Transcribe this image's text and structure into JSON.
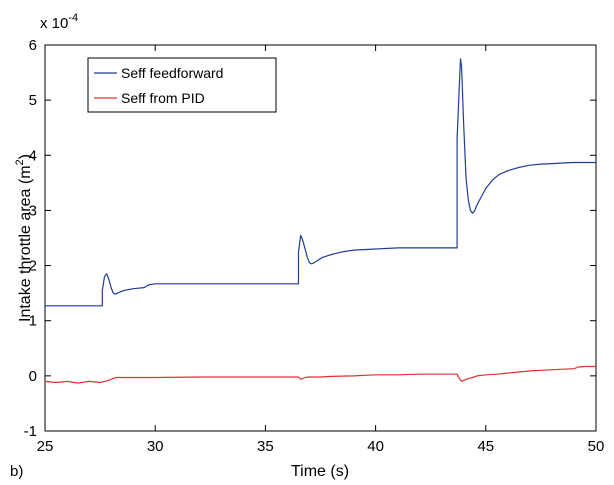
{
  "panel_label": "b)",
  "chart_data": {
    "type": "line",
    "xlabel": "Time (s)",
    "ylabel": "Intake throttle area (m²)",
    "ylabel_main": "Intake throttle area (m",
    "ylabel_exp": "2",
    "ylabel_close": ")",
    "y_scale_prefix": "x 10",
    "y_scale_exp": "-4",
    "xlim": [
      25,
      50
    ],
    "ylim": [
      -1,
      6
    ],
    "xticks": [
      25,
      30,
      35,
      40,
      45,
      50
    ],
    "yticks": [
      -1,
      0,
      1,
      2,
      3,
      4,
      5,
      6
    ],
    "grid": false,
    "legend_position": "top-left",
    "series": [
      {
        "name": "Seff feedforward",
        "color": "#1f3c99",
        "x": [
          25,
          27.6,
          27.6,
          27.7,
          27.8,
          27.9,
          28.0,
          28.1,
          28.2,
          28.4,
          28.6,
          29.0,
          29.5,
          29.7,
          30.0,
          31,
          32,
          33,
          34,
          35,
          36,
          36.5,
          36.5,
          36.6,
          36.7,
          36.8,
          36.9,
          37.0,
          37.1,
          37.2,
          37.4,
          37.6,
          38.0,
          38.5,
          39.0,
          40,
          41,
          42,
          43,
          43.7,
          43.7,
          43.8,
          43.85,
          43.9,
          44.0,
          44.1,
          44.2,
          44.3,
          44.4,
          44.5,
          44.6,
          44.8,
          45.0,
          45.3,
          45.6,
          46.0,
          46.5,
          47.0,
          47.5,
          48.0,
          48.5,
          49.0,
          49.5,
          50
        ],
        "values": [
          1.27,
          1.27,
          1.55,
          1.8,
          1.85,
          1.75,
          1.6,
          1.5,
          1.48,
          1.52,
          1.55,
          1.58,
          1.6,
          1.65,
          1.67,
          1.67,
          1.67,
          1.67,
          1.67,
          1.67,
          1.67,
          1.67,
          2.25,
          2.55,
          2.45,
          2.3,
          2.15,
          2.05,
          2.03,
          2.05,
          2.1,
          2.15,
          2.2,
          2.25,
          2.28,
          2.3,
          2.32,
          2.32,
          2.32,
          2.32,
          4.3,
          5.3,
          5.75,
          5.6,
          4.5,
          3.6,
          3.2,
          3.0,
          2.95,
          3.0,
          3.1,
          3.25,
          3.4,
          3.55,
          3.65,
          3.72,
          3.78,
          3.82,
          3.84,
          3.85,
          3.86,
          3.87,
          3.87,
          3.87
        ]
      },
      {
        "name": "Seff from PID",
        "color": "#e03030",
        "x": [
          25,
          25.5,
          26,
          26.5,
          27,
          27.5,
          27.9,
          28.2,
          29,
          30,
          32,
          34,
          36,
          36.5,
          36.6,
          36.8,
          37.0,
          37.5,
          38,
          39,
          40,
          41,
          42,
          43,
          43.7,
          43.8,
          43.9,
          44.0,
          44.2,
          44.4,
          44.6,
          45,
          45.5,
          46,
          46.5,
          47,
          47.5,
          48,
          48.5,
          49,
          49.2,
          49.5,
          50
        ],
        "values": [
          -0.1,
          -0.12,
          -0.1,
          -0.13,
          -0.1,
          -0.12,
          -0.08,
          -0.03,
          -0.03,
          -0.03,
          -0.02,
          -0.02,
          -0.02,
          -0.02,
          -0.06,
          -0.03,
          -0.02,
          -0.02,
          -0.01,
          0.0,
          0.02,
          0.02,
          0.03,
          0.03,
          0.03,
          -0.05,
          -0.1,
          -0.08,
          -0.05,
          -0.03,
          0.0,
          0.02,
          0.03,
          0.05,
          0.07,
          0.09,
          0.1,
          0.11,
          0.12,
          0.13,
          0.16,
          0.17,
          0.17
        ]
      }
    ]
  }
}
